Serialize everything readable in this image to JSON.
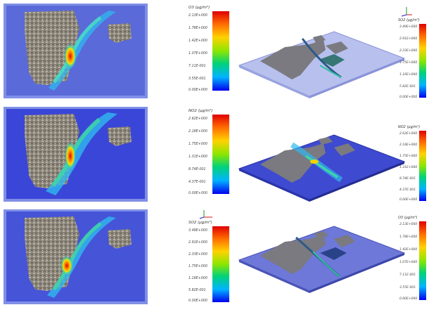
{
  "rows": [
    {
      "legend": {
        "title": "O3  (µg/m³)",
        "ticks": [
          "2.13E+000",
          "1.78E+000",
          "1.42E+000",
          "1.07E+000",
          "7.11E-001",
          "3.55E-001",
          "0.00E+000"
        ]
      },
      "legend3d": {
        "title": "SO2  (µg/m³)",
        "ticks": [
          "3.49E+000",
          "2.91E+000",
          "2.33E+000",
          "1.75E+000",
          "1.16E+000",
          "5.82E-001",
          "0.00E+000"
        ]
      }
    },
    {
      "legend": {
        "title": "NO2  (µg/m³)",
        "ticks": [
          "2.62E+000",
          "2.18E+000",
          "1.75E+000",
          "1.31E+000",
          "8.74E-001",
          "4.37E-001",
          "0.00E+000"
        ]
      },
      "legend3d": {
        "title": "NO2  (µg/m³)",
        "ticks": [
          "2.62E+000",
          "2.18E+000",
          "1.75E+000",
          "1.31E+000",
          "8.74E-001",
          "4.37E-001",
          "0.00E+000"
        ]
      }
    },
    {
      "legend": {
        "title": "SO2  (µg/m³)",
        "ticks": [
          "3.49E+000",
          "2.91E+000",
          "2.33E+000",
          "1.75E+000",
          "1.16E+000",
          "5.82E-001",
          "0.00E+000"
        ]
      },
      "legend3d": {
        "title": "O3  (µg/m³)",
        "ticks": [
          "2.13E+000",
          "1.78E+000",
          "1.42E+000",
          "1.07E+000",
          "7.11E-001",
          "3.55E-001",
          "0.00E+000"
        ]
      }
    }
  ],
  "colors": {
    "domain_blue": "#5a6ad8",
    "frame_blue": "#7f8fe6",
    "plume_high": "#e00000",
    "plume_mid": "#f5d200",
    "plume_low": "#28c8e6",
    "terrain_gray": "#7a7a80"
  }
}
